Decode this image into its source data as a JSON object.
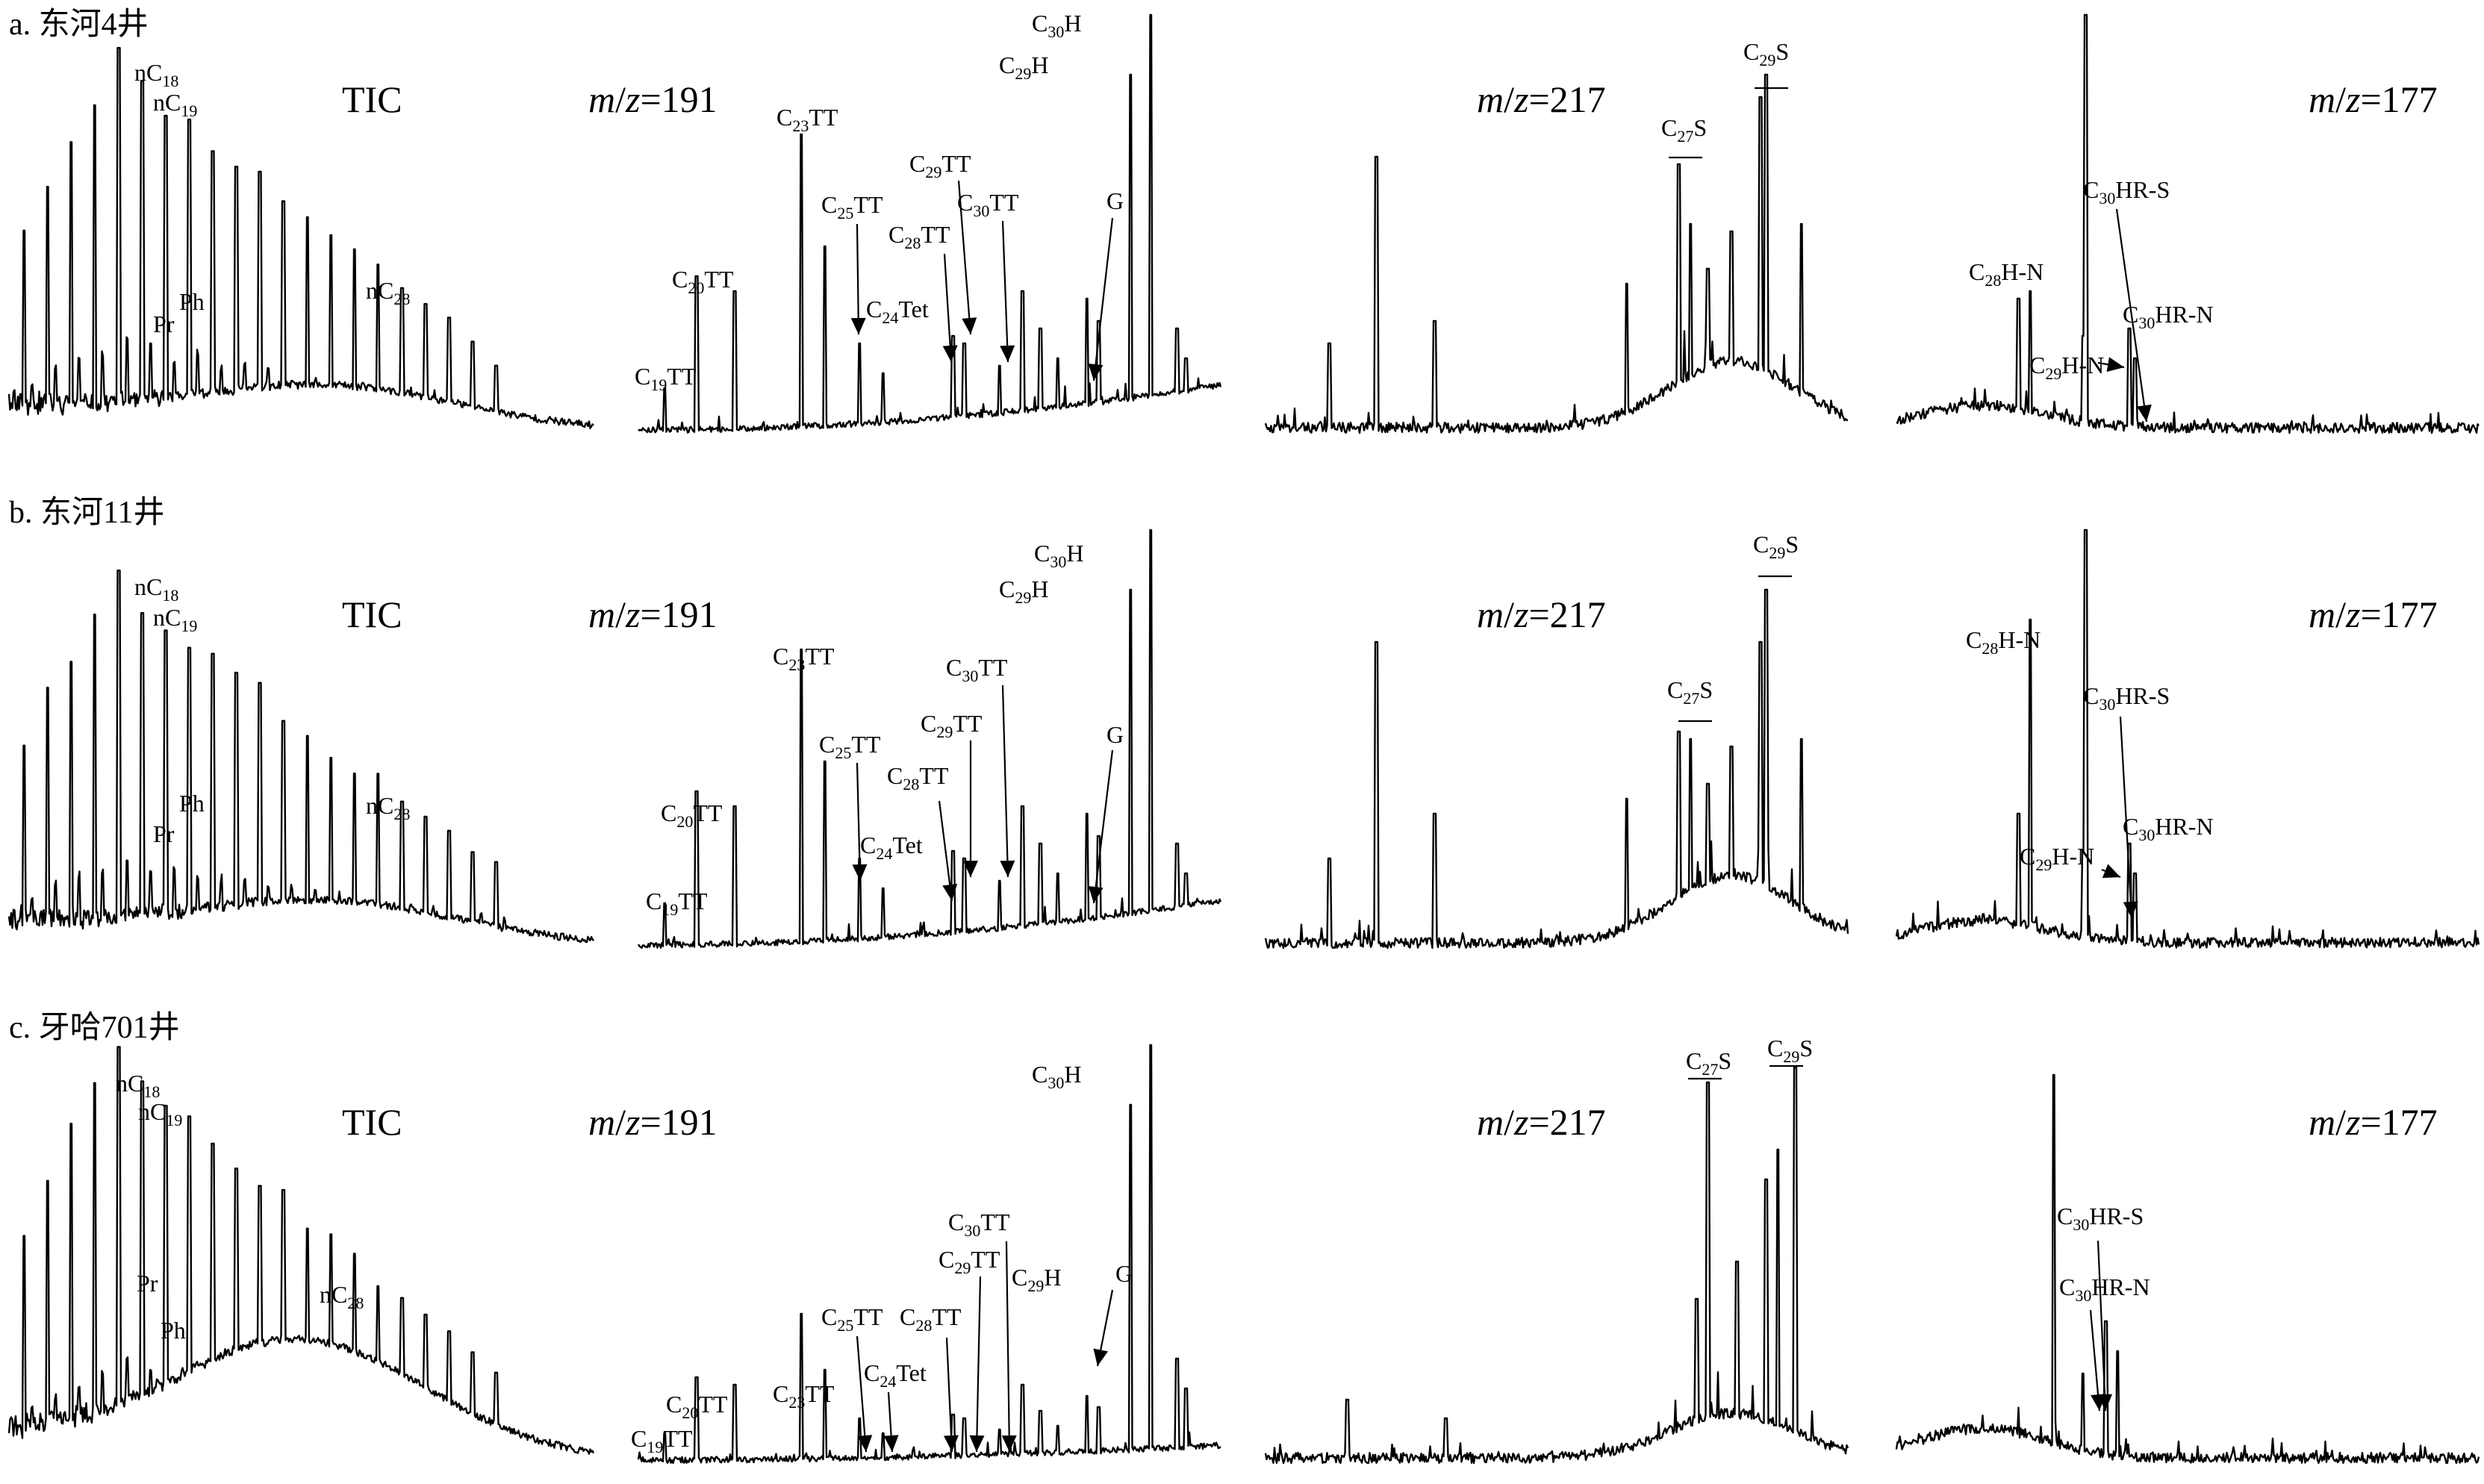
{
  "chart_data": [
    {
      "type": "line",
      "row_label": "a. 东河4井",
      "x_axis": "retention time (not labeled)",
      "y_axis": "relative abundance (not labeled)",
      "panels": [
        {
          "title": "TIC",
          "peaks_label": [
            "nC18",
            "nC19",
            "Pr",
            "Ph",
            "nC28"
          ]
        },
        {
          "title": "m/z=191",
          "peaks_label": [
            "C19TT",
            "C20TT",
            "C23TT",
            "C24Tet",
            "C25TT",
            "C28TT",
            "C29TT",
            "C30TT",
            "C29H",
            "C30H",
            "G"
          ]
        },
        {
          "title": "m/z=217",
          "peaks_label": [
            "C27S",
            "C29S"
          ]
        },
        {
          "title": "m/z=177",
          "peaks_label": [
            "C28H-N",
            "C29H-N",
            "C30HR-S",
            "C30HR-N"
          ]
        }
      ]
    },
    {
      "type": "line",
      "row_label": "b. 东河11井",
      "panels": [
        {
          "title": "TIC",
          "peaks_label": [
            "nC18",
            "nC19",
            "Pr",
            "Ph",
            "nC28"
          ]
        },
        {
          "title": "m/z=191",
          "peaks_label": [
            "C19TT",
            "C20TT",
            "C23TT",
            "C24Tet",
            "C25TT",
            "C28TT",
            "C29TT",
            "C30TT",
            "C29H",
            "C30H",
            "G"
          ]
        },
        {
          "title": "m/z=217",
          "peaks_label": [
            "C27S",
            "C29S"
          ]
        },
        {
          "title": "m/z=177",
          "peaks_label": [
            "C28H-N",
            "C29H-N",
            "C30HR-S",
            "C30HR-N"
          ]
        }
      ]
    },
    {
      "type": "line",
      "row_label": "c. 牙哈701井",
      "panels": [
        {
          "title": "TIC",
          "peaks_label": [
            "nC18",
            "nC19",
            "Pr",
            "Ph",
            "nC28"
          ]
        },
        {
          "title": "m/z=191",
          "peaks_label": [
            "C19TT",
            "C20TT",
            "C23TT",
            "C24Tet",
            "C25TT",
            "C28TT",
            "C29TT",
            "C30TT",
            "C29H",
            "C30H",
            "G"
          ]
        },
        {
          "title": "m/z=217",
          "peaks_label": [
            "C27S",
            "C29S"
          ]
        },
        {
          "title": "m/z=177",
          "peaks_label": [
            "C30HR-S",
            "C30HR-N"
          ]
        }
      ]
    }
  ]
}
